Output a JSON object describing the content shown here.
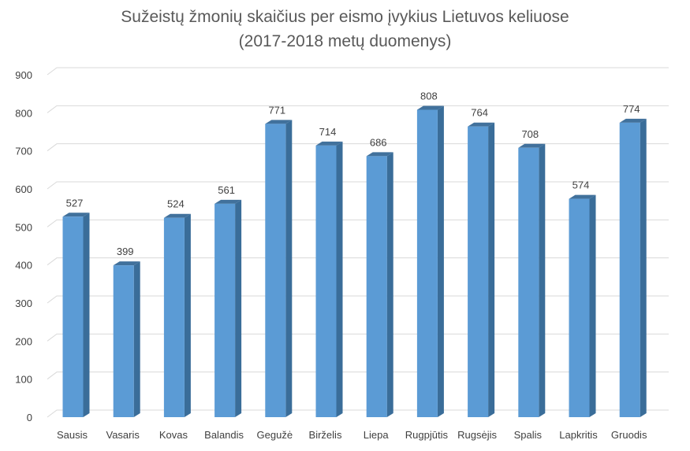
{
  "chart_data": {
    "type": "bar",
    "title_lines": [
      "Sužeistų žmonių skaičius per eismo įvykius Lietuvos keliuose",
      "(2017-2018 metų duomenys)"
    ],
    "categories": [
      "Sausis",
      "Vasaris",
      "Kovas",
      "Balandis",
      "Gegužė",
      "Birželis",
      "Liepa",
      "Rugpjūtis",
      "Rugsėjis",
      "Spalis",
      "Lapkritis",
      "Gruodis"
    ],
    "values": [
      527,
      399,
      524,
      561,
      771,
      714,
      686,
      808,
      764,
      708,
      574,
      774
    ],
    "ylim": [
      0,
      900
    ],
    "yticks": [
      0,
      100,
      200,
      300,
      400,
      500,
      600,
      700,
      800,
      900
    ],
    "grid": true,
    "legend": "none",
    "bar_colors": {
      "front": "#5b9bd5",
      "side": "#3a6d99",
      "top": "#41719c"
    },
    "grid_color": "#d9d9d9",
    "text_color": "#404040"
  }
}
